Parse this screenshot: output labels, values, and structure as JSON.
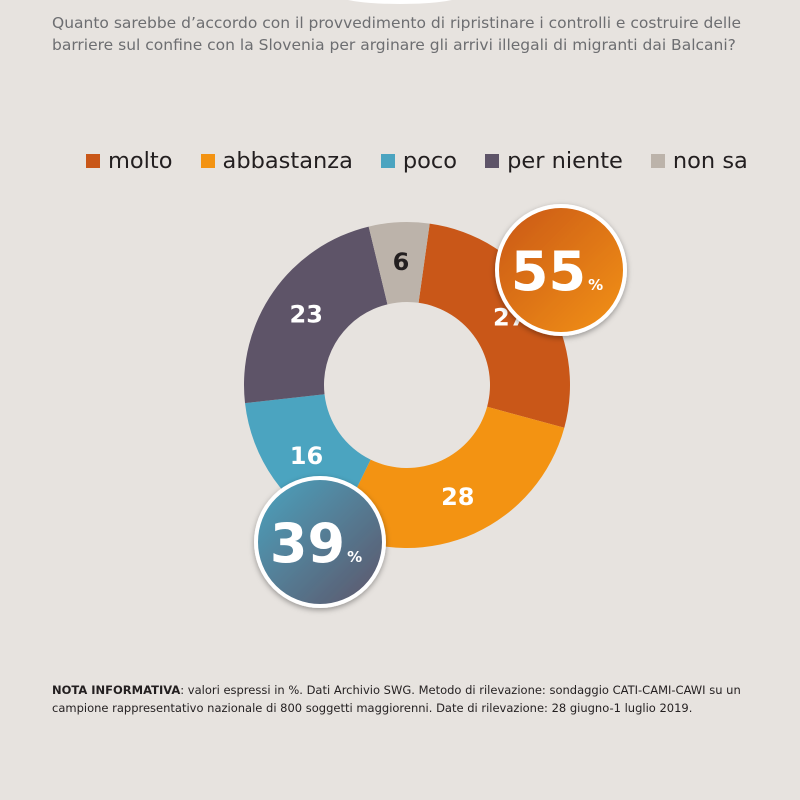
{
  "question": "Quanto sarebbe d’accordo con il provvedimento di ripristinare i controlli e costruire delle barriere sul confine con la Slovenia per arginare gli arrivi illegali di migranti dai Balcani?",
  "chart_data": {
    "type": "donut",
    "categories": [
      "molto",
      "abbastanza",
      "poco",
      "per niente",
      "non sa"
    ],
    "values": [
      27,
      28,
      16,
      23,
      6
    ],
    "colors": [
      "#c95718",
      "#f39312",
      "#4ba4c0",
      "#5e5468",
      "#bcb3aa"
    ],
    "label_colors": [
      "#ffffff",
      "#ffffff",
      "#ffffff",
      "#ffffff",
      "#231f20"
    ],
    "unit": "%",
    "totals": [
      {
        "value": "55",
        "unit": "%",
        "colors": [
          "#c95718",
          "#f39312"
        ]
      },
      {
        "value": "39",
        "unit": "%",
        "colors": [
          "#4ba4c0",
          "#5e5468"
        ]
      }
    ]
  },
  "legend": [
    {
      "label": "molto",
      "color": "#c95718"
    },
    {
      "label": "abbastanza",
      "color": "#f39312"
    },
    {
      "label": "poco",
      "color": "#4ba4c0"
    },
    {
      "label": "per niente",
      "color": "#5e5468"
    },
    {
      "label": "non sa",
      "color": "#bcb3aa"
    }
  ],
  "note": {
    "label": "NOTA INFORMATIVA",
    "text": ": valori espressi in %. Dati Archivio SWG. Metodo di rilevazione: sondaggio CATI-CAMI-CAWI su un campione rappresentativo nazionale di 800 soggetti maggiorenni. Date di rilevazione: 28 giugno-1 luglio 2019."
  }
}
